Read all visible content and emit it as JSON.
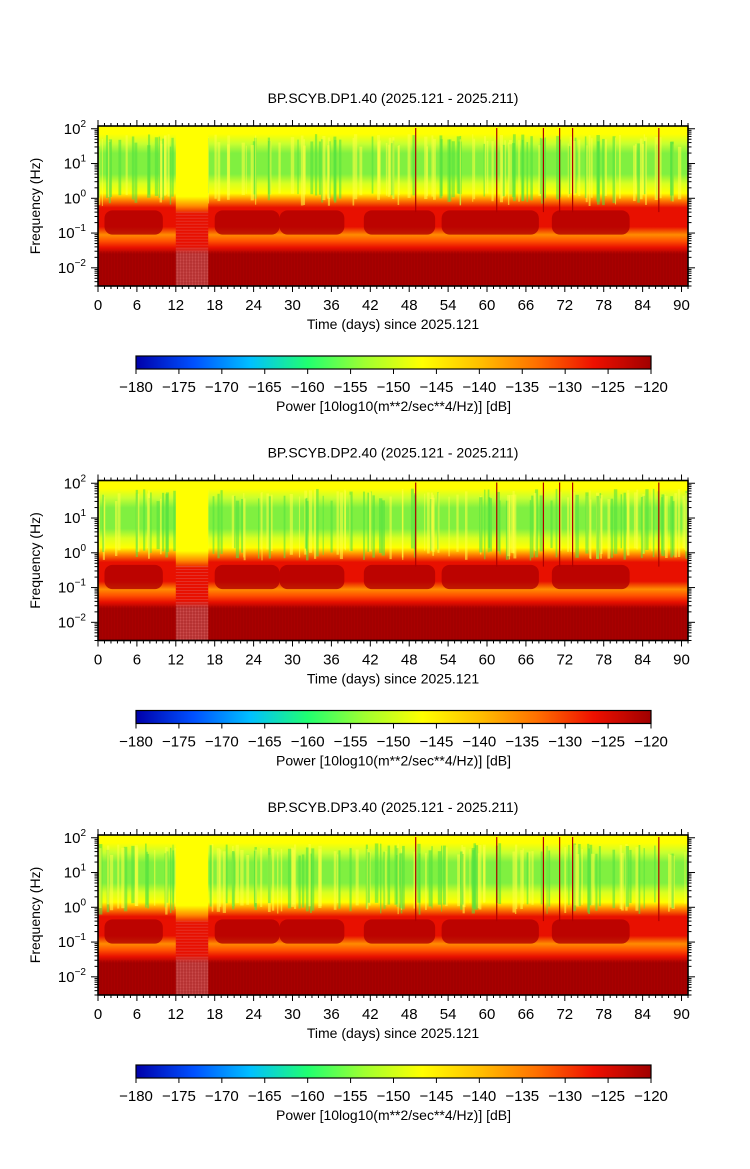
{
  "chart_data": [
    {
      "type": "heatmap",
      "title": "BP.SCYB.DP1.40 (2025.121 - 2025.211)",
      "xlabel": "Time (days) since 2025.121",
      "ylabel": "Frequency (Hz)",
      "x_ticks": [
        "0",
        "6",
        "12",
        "18",
        "24",
        "30",
        "36",
        "42",
        "48",
        "54",
        "60",
        "66",
        "72",
        "78",
        "84",
        "90"
      ],
      "xlim": [
        0,
        91
      ],
      "yscale": "log",
      "ylim": [
        0.003,
        120
      ],
      "y_ticks": [
        {
          "base": "10",
          "exp": "−2",
          "value": 0.01
        },
        {
          "base": "10",
          "exp": "−1",
          "value": 0.1
        },
        {
          "base": "10",
          "exp": "0",
          "value": 1
        },
        {
          "base": "10",
          "exp": "1",
          "value": 10
        },
        {
          "base": "10",
          "exp": "2",
          "value": 100
        }
      ],
      "colorbar": {
        "label": "Power [10log10(m**2/sec**4/Hz)] [dB]",
        "range": [
          -180,
          -120
        ],
        "ticks": [
          "−180",
          "−175",
          "−170",
          "−165",
          "−160",
          "−155",
          "−150",
          "−145",
          "−140",
          "−135",
          "−130",
          "−125",
          "−120"
        ],
        "colors": [
          "#0000aa",
          "#0050ff",
          "#00c0ff",
          "#20ff70",
          "#a0ff30",
          "#ffff00",
          "#ffc000",
          "#ff7000",
          "#ee1000",
          "#a00000"
        ]
      }
    },
    {
      "type": "heatmap",
      "title": "BP.SCYB.DP2.40 (2025.121 - 2025.211)",
      "xlabel": "Time (days) since 2025.121",
      "ylabel": "Frequency (Hz)",
      "x_ticks": [
        "0",
        "6",
        "12",
        "18",
        "24",
        "30",
        "36",
        "42",
        "48",
        "54",
        "60",
        "66",
        "72",
        "78",
        "84",
        "90"
      ],
      "xlim": [
        0,
        91
      ],
      "yscale": "log",
      "ylim": [
        0.003,
        120
      ],
      "y_ticks": [
        {
          "base": "10",
          "exp": "−2",
          "value": 0.01
        },
        {
          "base": "10",
          "exp": "−1",
          "value": 0.1
        },
        {
          "base": "10",
          "exp": "0",
          "value": 1
        },
        {
          "base": "10",
          "exp": "1",
          "value": 10
        },
        {
          "base": "10",
          "exp": "2",
          "value": 100
        }
      ],
      "colorbar": {
        "label": "Power [10log10(m**2/sec**4/Hz)] [dB]",
        "range": [
          -180,
          -120
        ],
        "ticks": [
          "−180",
          "−175",
          "−170",
          "−165",
          "−160",
          "−155",
          "−150",
          "−145",
          "−140",
          "−135",
          "−130",
          "−125",
          "−120"
        ],
        "colors": [
          "#0000aa",
          "#0050ff",
          "#00c0ff",
          "#20ff70",
          "#a0ff30",
          "#ffff00",
          "#ffc000",
          "#ff7000",
          "#ee1000",
          "#a00000"
        ]
      }
    },
    {
      "type": "heatmap",
      "title": "BP.SCYB.DP3.40 (2025.121 - 2025.211)",
      "xlabel": "Time (days) since 2025.121",
      "ylabel": "Frequency (Hz)",
      "x_ticks": [
        "0",
        "6",
        "12",
        "18",
        "24",
        "30",
        "36",
        "42",
        "48",
        "54",
        "60",
        "66",
        "72",
        "78",
        "84",
        "90"
      ],
      "xlim": [
        0,
        91
      ],
      "yscale": "log",
      "ylim": [
        0.003,
        120
      ],
      "y_ticks": [
        {
          "base": "10",
          "exp": "−2",
          "value": 0.01
        },
        {
          "base": "10",
          "exp": "−1",
          "value": 0.1
        },
        {
          "base": "10",
          "exp": "0",
          "value": 1
        },
        {
          "base": "10",
          "exp": "1",
          "value": 10
        },
        {
          "base": "10",
          "exp": "2",
          "value": 100
        }
      ],
      "colorbar": {
        "label": "Power [10log10(m**2/sec**4/Hz)] [dB]",
        "range": [
          -180,
          -120
        ],
        "ticks": [
          "−180",
          "−175",
          "−170",
          "−165",
          "−160",
          "−155",
          "−150",
          "−145",
          "−140",
          "−135",
          "−130",
          "−125",
          "−120"
        ],
        "colors": [
          "#0000aa",
          "#0050ff",
          "#00c0ff",
          "#20ff70",
          "#a0ff30",
          "#ffff00",
          "#ffc000",
          "#ff7000",
          "#ee1000",
          "#a00000"
        ]
      }
    }
  ],
  "spectrogram_colors": {
    "green_band": "#80f040",
    "yellow": "#ffff00",
    "orange": "#ff8c00",
    "red": "#e81000",
    "dark_red": "#a80000",
    "gap_texture": "#c04040"
  }
}
